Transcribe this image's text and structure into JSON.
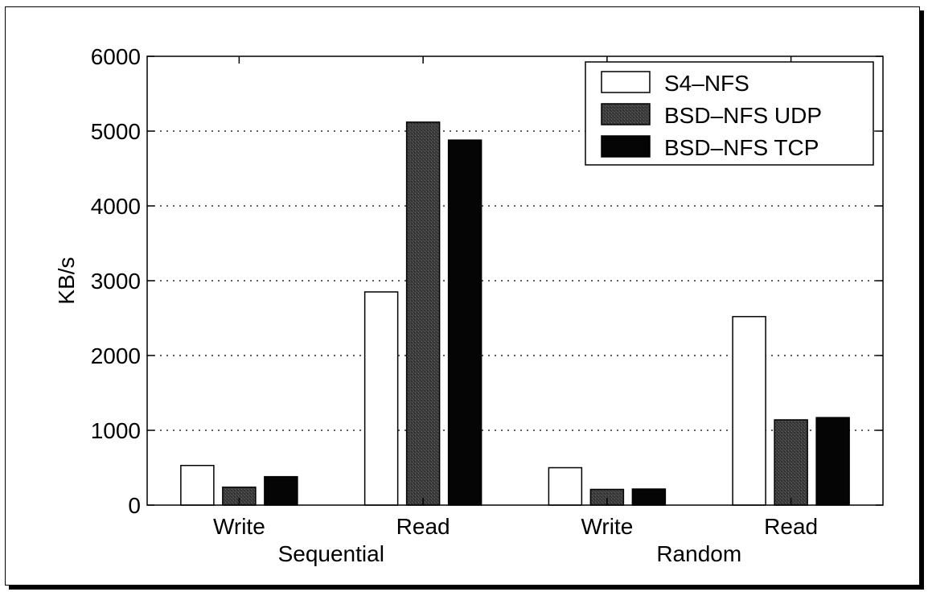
{
  "chart_data": {
    "type": "bar",
    "ylabel": "KB/s",
    "ylim": [
      0,
      6000
    ],
    "yticks": [
      0,
      1000,
      2000,
      3000,
      4000,
      5000,
      6000
    ],
    "grid": "y-dotted",
    "legend_position": "top-right",
    "categories": [
      "Write",
      "Read",
      "Write",
      "Read"
    ],
    "groups": [
      {
        "label": "Sequential",
        "span": [
          0,
          1
        ]
      },
      {
        "label": "Random",
        "span": [
          2,
          3
        ]
      }
    ],
    "series": [
      {
        "name": "S4–NFS",
        "color": "#ffffff",
        "values": [
          530,
          2850,
          500,
          2520
        ]
      },
      {
        "name": "BSD–NFS UDP",
        "color": "#3c3c3c",
        "values": [
          240,
          5120,
          210,
          1140
        ]
      },
      {
        "name": "BSD–NFS TCP",
        "color": "#050505",
        "values": [
          380,
          4880,
          215,
          1170
        ]
      }
    ]
  }
}
